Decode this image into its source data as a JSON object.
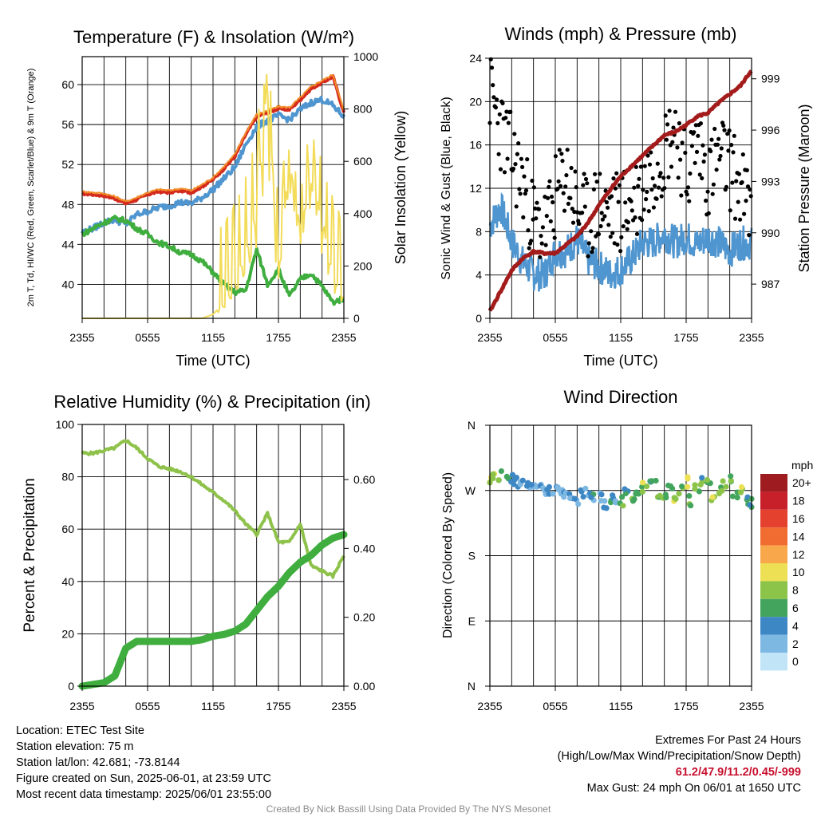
{
  "chart_data": [
    {
      "type": "line",
      "title": "Temperature (F) & Insolation (W/m²)",
      "ylabel": "2m T, Td, HI/WC (Red, Green, Scarlet/Blue) & 9m T (Orange)",
      "y2label": "Solar Insolation (Yellow)",
      "xlabel": "Time (UTC)",
      "x_ticks": [
        "2355",
        "0555",
        "1155",
        "1755",
        "2355"
      ],
      "y_ticks": [
        "40",
        "44",
        "48",
        "52",
        "56",
        "60"
      ],
      "y2_ticks": [
        "0",
        "200",
        "400",
        "600",
        "800",
        "1000"
      ],
      "ylim": [
        36.6,
        62.8
      ],
      "y2lim": [
        0,
        1000
      ],
      "x_hours": [
        0,
        1,
        2,
        3,
        4,
        5,
        6,
        7,
        8,
        9,
        10,
        11,
        12,
        13,
        14,
        15,
        16,
        17,
        18,
        19,
        20,
        21,
        22,
        23,
        24
      ],
      "series": [
        {
          "key": "temp_2m",
          "color": "#d42a1e",
          "values": [
            49.1,
            49.0,
            48.9,
            48.6,
            48.1,
            48.5,
            49.0,
            49.3,
            49.2,
            49.4,
            49.2,
            49.8,
            50.5,
            51.6,
            52.8,
            55.0,
            56.8,
            57.2,
            57.6,
            57.5,
            58.5,
            59.6,
            60.2,
            60.8,
            57.2
          ]
        },
        {
          "key": "temp_9m",
          "color": "#f28c28",
          "values": [
            49.3,
            49.2,
            49.1,
            48.8,
            48.3,
            48.7,
            49.2,
            49.5,
            49.4,
            49.6,
            49.4,
            50.0,
            50.7,
            51.8,
            53.0,
            55.2,
            57.0,
            57.4,
            57.8,
            57.7,
            58.7,
            59.8,
            60.4,
            61.0,
            57.4
          ]
        },
        {
          "key": "heat_index_wind_chill",
          "color": "#4f95cf",
          "values": [
            45.2,
            45.6,
            46.2,
            46.5,
            46.0,
            47.0,
            47.3,
            47.7,
            47.9,
            48.2,
            48.1,
            48.7,
            49.5,
            50.6,
            51.7,
            54.0,
            55.8,
            56.4,
            56.9,
            56.5,
            57.5,
            58.2,
            58.5,
            57.9,
            56.8
          ]
        },
        {
          "key": "dewpoint",
          "color": "#3fae3f",
          "values": [
            45.0,
            45.6,
            46.2,
            46.6,
            46.4,
            45.6,
            45.0,
            44.2,
            43.8,
            43.2,
            43.0,
            42.3,
            41.2,
            40.0,
            39.2,
            39.4,
            43.5,
            40.0,
            41.5,
            38.8,
            40.5,
            41.1,
            39.8,
            38.2,
            38.6
          ]
        },
        {
          "key": "insolation",
          "axis": "y2",
          "color": "#f3dc5a",
          "values": [
            0,
            0,
            0,
            0,
            0,
            0,
            0,
            0,
            0,
            0,
            0,
            0,
            15,
            60,
            140,
            260,
            420,
            980,
            160,
            620,
            350,
            520,
            400,
            160,
            80
          ]
        }
      ]
    },
    {
      "type": "scatter",
      "title": "Winds (mph) & Pressure (mb)",
      "ylabel": "Sonic Wind & Gust (Blue, Black)",
      "y2label": "Station Pressure (Maroon)",
      "xlabel": "Time (UTC)",
      "x_ticks": [
        "2355",
        "0555",
        "1155",
        "1755",
        "2355"
      ],
      "y_ticks": [
        "0",
        "4",
        "8",
        "12",
        "16",
        "20",
        "24"
      ],
      "y2_ticks": [
        "987",
        "990",
        "993",
        "996",
        "999"
      ],
      "ylim": [
        0,
        24
      ],
      "y2lim": [
        985.0,
        1000.2
      ],
      "x_hours": [
        0,
        1,
        2,
        3,
        4,
        5,
        6,
        7,
        8,
        9,
        10,
        11,
        12,
        13,
        14,
        15,
        16,
        17,
        18,
        19,
        20,
        21,
        22,
        23,
        24
      ],
      "series": [
        {
          "key": "sonic_wind",
          "color": "#4f95cf",
          "values": [
            8.6,
            10.3,
            7.1,
            5.2,
            4.1,
            4.0,
            6.2,
            6.2,
            7.3,
            5.4,
            4.8,
            4.1,
            4.5,
            5.5,
            7.0,
            7.0,
            7.8,
            7.0,
            7.5,
            6.8,
            7.5,
            7.0,
            6.2,
            7.0,
            6.9
          ]
        },
        {
          "key": "gust",
          "color": "#000000",
          "values": [
            21.0,
            17.5,
            15.0,
            12.5,
            9.0,
            8.0,
            11.0,
            13.5,
            10.0,
            9.0,
            10.5,
            9.5,
            10.0,
            10.5,
            12.0,
            14.0,
            15.5,
            18.0,
            13.0,
            16.5,
            13.0,
            15.0,
            14.0,
            12.0,
            9.5
          ]
        },
        {
          "key": "station_pressure",
          "axis": "y2",
          "color": "#a31b1b",
          "values": [
            985.4,
            986.6,
            987.8,
            988.5,
            988.9,
            988.8,
            988.8,
            989.3,
            989.8,
            990.6,
            991.6,
            992.5,
            993.3,
            993.9,
            994.5,
            995.1,
            995.7,
            995.9,
            996.3,
            996.8,
            997.0,
            997.6,
            998.1,
            998.6,
            999.5
          ]
        }
      ]
    },
    {
      "type": "line",
      "title": "Relative Humidity (%) & Precipitation (in)",
      "ylabel": "Percent & Precipitation",
      "x_ticks": [
        "2355",
        "0555",
        "1155",
        "1755",
        "2355"
      ],
      "y_ticks": [
        "0",
        "20",
        "40",
        "60",
        "80",
        "100"
      ],
      "y2_ticks": [
        "0.00",
        "0.20",
        "0.40",
        "0.60"
      ],
      "ylim": [
        0,
        100
      ],
      "y2lim": [
        0,
        0.76
      ],
      "x_hours": [
        0,
        1,
        2,
        3,
        4,
        5,
        6,
        7,
        8,
        9,
        10,
        11,
        12,
        13,
        14,
        15,
        16,
        17,
        18,
        19,
        20,
        21,
        22,
        23,
        24
      ],
      "series": [
        {
          "key": "relative_humidity",
          "color": "#8ec24a",
          "values": [
            89,
            89,
            90,
            91,
            94,
            91,
            87,
            84,
            83,
            82,
            80,
            77,
            74,
            71,
            67,
            62,
            58,
            66,
            55,
            55,
            62,
            46,
            44,
            42,
            50
          ]
        },
        {
          "key": "precipitation",
          "axis": "y2",
          "color": "#3fae3f",
          "values": [
            0.0,
            0.005,
            0.01,
            0.03,
            0.11,
            0.13,
            0.13,
            0.13,
            0.13,
            0.13,
            0.13,
            0.135,
            0.145,
            0.15,
            0.16,
            0.18,
            0.22,
            0.26,
            0.29,
            0.33,
            0.36,
            0.38,
            0.41,
            0.43,
            0.44
          ]
        }
      ]
    },
    {
      "type": "scatter",
      "title": "Wind Direction",
      "ylabel": "Direction (Colored By Speed)",
      "x_ticks": [
        "2355",
        "0555",
        "1155",
        "1755",
        "2355"
      ],
      "y_ticks": [
        "N",
        "E",
        "S",
        "W",
        "N"
      ],
      "ylim": [
        0,
        360
      ],
      "x_hours": [
        0,
        0.5,
        1,
        1.5,
        2,
        2.5,
        3,
        3.5,
        4,
        4.5,
        5,
        5.5,
        6,
        6.5,
        7,
        7.5,
        8,
        8.5,
        9,
        9.5,
        10,
        10.5,
        11,
        11.5,
        12,
        12.5,
        13,
        13.5,
        14,
        14.5,
        15,
        15.5,
        16,
        16.5,
        17,
        17.5,
        18,
        18.5,
        19,
        19.5,
        20,
        20.5,
        21,
        21.5,
        22,
        22.5,
        23,
        23.5,
        24
      ],
      "directions": [
        287,
        289,
        290,
        288,
        285,
        282,
        278,
        276,
        275,
        272,
        270,
        268,
        272,
        270,
        266,
        262,
        258,
        264,
        268,
        260,
        262,
        252,
        258,
        254,
        256,
        268,
        262,
        272,
        274,
        280,
        278,
        266,
        258,
        276,
        262,
        270,
        282,
        256,
        272,
        284,
        278,
        262,
        268,
        276,
        288,
        262,
        270,
        255,
        252
      ],
      "speeds": [
        9,
        8,
        7,
        6,
        5,
        4,
        3,
        3,
        2,
        3,
        4,
        3,
        2,
        3,
        3,
        4,
        4,
        3,
        2,
        4,
        3,
        4,
        5,
        4,
        6,
        5,
        7,
        6,
        8,
        7,
        6,
        8,
        7,
        6,
        8,
        7,
        9,
        7,
        8,
        6,
        7,
        9,
        7,
        8,
        7,
        6,
        8,
        6,
        5
      ],
      "colorbar": {
        "title": "mph",
        "labels": [
          "20+",
          "18",
          "16",
          "14",
          "12",
          "10",
          "8",
          "6",
          "4",
          "2",
          "0"
        ],
        "colors": [
          "#9e1c20",
          "#c7202a",
          "#e4412f",
          "#f16c30",
          "#f8a74a",
          "#ede054",
          "#8cc44a",
          "#43a55d",
          "#3d87c4",
          "#7db8e3",
          "#c2e4f7"
        ]
      }
    }
  ],
  "footer": {
    "location": "Location: ETEC Test Site",
    "elevation": "Station elevation: 75 m",
    "latlon": "Station lat/lon: 42.681; -73.8144",
    "created": "Figure created on Sun, 2025-06-01, at 23:59 UTC",
    "recent": "Most recent data timestamp: 2025/06/01 23:55:00",
    "extremes_title": "Extremes For Past 24 Hours",
    "extremes_subtitle": "(High/Low/Max Wind/Precipitation/Snow Depth)",
    "extremes_values": "61.2/47.9/11.2/0.45/-999",
    "max_gust": "Max Gust: 24 mph On 06/01 at 1650 UTC",
    "credit": "Created By Nick Bassill Using Data Provided By The NYS Mesonet"
  }
}
